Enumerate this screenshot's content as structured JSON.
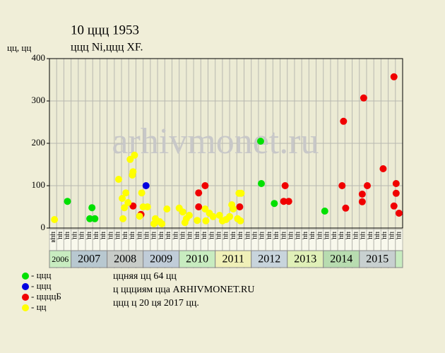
{
  "chart_data": {
    "type": "scatter",
    "title": "10 ццц 1953",
    "subtitle": "ццц Ni,ццц XF.",
    "y_label": "цц, цц",
    "watermark": "arhivmonet.ru",
    "ylim": [
      0,
      400
    ],
    "yticks": [
      0,
      100,
      200,
      300,
      400
    ],
    "xlim": [
      0,
      49
    ],
    "grid": true,
    "x_categories": [
      "цця",
      "цц",
      "цц",
      "цц",
      "цц",
      "цц",
      "цц",
      "цц",
      "цц",
      "цц",
      "цц",
      "цц",
      "цц",
      "цц",
      "цц",
      "цц",
      "цц",
      "цц",
      "цц",
      "цц",
      "цц",
      "цц",
      "цц",
      "цц",
      "цц",
      "цц",
      "цц",
      "цц",
      "цц",
      "цц",
      "цц",
      "цц",
      "цц",
      "цц",
      "цц",
      "цц",
      "цц",
      "цц",
      "цц",
      "цц",
      "цц",
      "цц",
      "цц",
      "цц",
      "цц",
      "цц",
      "цц",
      "цц",
      "цц"
    ],
    "year_groups": [
      {
        "label": "2006",
        "count": 3,
        "color": "#c8ecc0"
      },
      {
        "label": "2007",
        "count": 5,
        "color": "#b8c8d0"
      },
      {
        "label": "2008",
        "count": 5,
        "color": "#c8ccc8"
      },
      {
        "label": "2009",
        "count": 5,
        "color": "#c0ccd8"
      },
      {
        "label": "2010",
        "count": 5,
        "color": "#c8ecc0"
      },
      {
        "label": "2011",
        "count": 5,
        "color": "#f0f0b8"
      },
      {
        "label": "2012",
        "count": 5,
        "color": "#c8d4dc"
      },
      {
        "label": "2013",
        "count": 5,
        "color": "#e0f0b8"
      },
      {
        "label": "2014",
        "count": 5,
        "color": "#b8dcb0"
      },
      {
        "label": "2015",
        "count": 5,
        "color": "#c8d0d0"
      }
    ],
    "series": [
      {
        "name": "- ццц",
        "color": "#00e000",
        "x": [
          2.5,
          5.9,
          5.6,
          6.3,
          29.3,
          29.4,
          31.2,
          38.2
        ],
        "values": [
          63,
          48,
          22,
          22,
          205,
          105,
          58,
          40
        ]
      },
      {
        "name": "- ццц",
        "color": "#0000e0",
        "x": [
          13.4
        ],
        "values": [
          100
        ]
      },
      {
        "name": "- ццццБ",
        "color": "#f00000",
        "x": [
          11.6,
          12.7,
          20.7,
          21.6,
          20.7,
          26.4,
          32.7,
          32.5,
          33.2,
          40.8,
          40.6,
          41.1,
          43.6,
          43.4,
          43.4,
          44.1,
          46.3,
          47.8,
          48.1,
          48.1,
          47.8,
          48.5
        ],
        "values": [
          52,
          32,
          83,
          100,
          50,
          50,
          100,
          63,
          63,
          252,
          100,
          47,
          307,
          80,
          62,
          100,
          140,
          357,
          105,
          82,
          52,
          35
        ]
      },
      {
        "name": "- цц",
        "color": "#ffff00",
        "x": [
          0.7,
          9.6,
          10.1,
          10.6,
          10.4,
          10.2,
          10.9,
          11.2,
          11.8,
          11.6,
          11.5,
          12.5,
          12.8,
          13.0,
          13.6,
          14.7,
          15.3,
          15.6,
          14.5,
          16.3,
          18.0,
          18.5,
          19.0,
          19.4,
          18.8,
          20.5,
          21.6,
          21.7,
          22.2,
          22.7,
          23.6,
          24.0,
          24.5,
          25.0,
          25.3,
          25.5,
          26.1,
          26.3,
          26.6,
          26.5
        ],
        "values": [
          20,
          115,
          70,
          83,
          48,
          22,
          60,
          162,
          172,
          133,
          125,
          28,
          83,
          50,
          50,
          22,
          15,
          10,
          10,
          45,
          47,
          38,
          22,
          30,
          13,
          18,
          45,
          17,
          35,
          27,
          30,
          17,
          20,
          27,
          55,
          45,
          22,
          82,
          82,
          17
        ]
      }
    ],
    "notes": [
      "ццняя цц 64 цц",
      "ц ццциям цца ARHIVMONET.RU",
      "ццц ц 20 ця 2017 цц."
    ]
  }
}
